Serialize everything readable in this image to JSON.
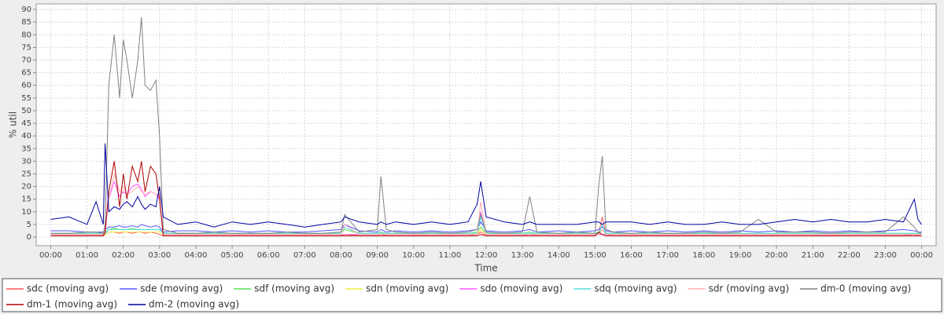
{
  "chart_data": {
    "type": "line",
    "ylabel": "% util",
    "xlabel": "Time",
    "xlim": [
      -0.4,
      24.4
    ],
    "ylim": [
      -3.4,
      92.2
    ],
    "xticks": [
      {
        "value": 0,
        "label": "00:00"
      },
      {
        "value": 1,
        "label": "01:00"
      },
      {
        "value": 2,
        "label": "02:00"
      },
      {
        "value": 3,
        "label": "03:00"
      },
      {
        "value": 4,
        "label": "04:00"
      },
      {
        "value": 5,
        "label": "05:00"
      },
      {
        "value": 6,
        "label": "06:00"
      },
      {
        "value": 7,
        "label": "07:00"
      },
      {
        "value": 8,
        "label": "08:00"
      },
      {
        "value": 9,
        "label": "09:00"
      },
      {
        "value": 10,
        "label": "10:00"
      },
      {
        "value": 11,
        "label": "11:00"
      },
      {
        "value": 12,
        "label": "12:00"
      },
      {
        "value": 13,
        "label": "13:00"
      },
      {
        "value": 14,
        "label": "14:00"
      },
      {
        "value": 15,
        "label": "15:00"
      },
      {
        "value": 16,
        "label": "16:00"
      },
      {
        "value": 17,
        "label": "17:00"
      },
      {
        "value": 18,
        "label": "18:00"
      },
      {
        "value": 19,
        "label": "19:00"
      },
      {
        "value": 20,
        "label": "20:00"
      },
      {
        "value": 21,
        "label": "21:00"
      },
      {
        "value": 22,
        "label": "22:00"
      },
      {
        "value": 23,
        "label": "23:00"
      },
      {
        "value": 24,
        "label": "00:00"
      }
    ],
    "yticks": [
      0,
      5,
      10,
      15,
      20,
      25,
      30,
      35,
      40,
      45,
      50,
      55,
      60,
      65,
      70,
      75,
      80,
      85,
      90
    ],
    "grid": true,
    "x": [
      0,
      0.5,
      1,
      1.25,
      1.45,
      1.5,
      1.6,
      1.75,
      1.9,
      2,
      2.1,
      2.25,
      2.4,
      2.5,
      2.6,
      2.75,
      2.9,
      3,
      3.1,
      3.5,
      4,
      4.5,
      5,
      5.5,
      6,
      6.5,
      7,
      7.5,
      8,
      8.1,
      8.5,
      9,
      9.1,
      9.25,
      9.5,
      10,
      10.5,
      11,
      11.5,
      11.75,
      11.85,
      12,
      12.5,
      13,
      13.2,
      13.4,
      14,
      14.5,
      15,
      15.1,
      15.2,
      15.3,
      15.5,
      16,
      16.5,
      17,
      17.5,
      18,
      18.5,
      19,
      19.5,
      20,
      20.5,
      21,
      21.5,
      22,
      22.5,
      23,
      23.5,
      23.8,
      23.9,
      24
    ],
    "series": [
      {
        "name": "sdc (moving avg)",
        "color": "#ff5555",
        "values": [
          0.5,
          0.5,
          0.5,
          0.5,
          0.5,
          1,
          2,
          2,
          1.5,
          2,
          2,
          1.5,
          2,
          2,
          1.5,
          2,
          1.5,
          1,
          0.5,
          0.5,
          0.5,
          0.5,
          0.5,
          0.5,
          0.5,
          0.5,
          0.5,
          0.5,
          0.5,
          1,
          0.5,
          0.5,
          1,
          0.5,
          0.5,
          0.5,
          0.5,
          0.5,
          0.5,
          1,
          2,
          0.5,
          0.5,
          0.5,
          1,
          0.5,
          0.5,
          0.5,
          0.5,
          1.5,
          8,
          1,
          0.5,
          0.5,
          0.5,
          0.5,
          0.5,
          0.5,
          0.5,
          0.5,
          0.5,
          0.5,
          0.5,
          0.5,
          0.5,
          0.5,
          0.5,
          0.5,
          0.5,
          1,
          0.5,
          0.5
        ]
      },
      {
        "name": "sde (moving avg)",
        "color": "#5555ff",
        "values": [
          2.5,
          2.5,
          2,
          2,
          2,
          3,
          4,
          4,
          4.5,
          4,
          4,
          4.5,
          4,
          5,
          4.5,
          4,
          4.5,
          4,
          2,
          2.5,
          2.5,
          2,
          2.5,
          2,
          2.5,
          2,
          2,
          2.5,
          3,
          5,
          2.5,
          2,
          3,
          2,
          2.5,
          2,
          2.5,
          2,
          2.5,
          3,
          6,
          2.5,
          2,
          2.5,
          3,
          2,
          2.5,
          2,
          2.5,
          3,
          4,
          2.5,
          2,
          2.5,
          2,
          2.5,
          2,
          2.5,
          2,
          2.5,
          2,
          2.5,
          2,
          2.5,
          2,
          2.5,
          2,
          2.5,
          3,
          2.5,
          2,
          2
        ]
      },
      {
        "name": "sdf (moving avg)",
        "color": "#55dd55",
        "values": [
          1.5,
          1.5,
          1.5,
          1.5,
          1.5,
          2,
          3,
          3.5,
          3,
          3,
          3,
          3.5,
          3,
          3,
          3,
          3,
          3,
          3,
          1.5,
          1.5,
          1.5,
          1.5,
          1.5,
          1.5,
          1.5,
          1.5,
          1.5,
          1.5,
          1.5,
          3,
          1.5,
          1.5,
          2,
          1.5,
          1.5,
          1.5,
          1.5,
          1.5,
          1.5,
          2,
          4,
          1.5,
          1.5,
          1.5,
          2,
          1.5,
          1.5,
          1.5,
          1.5,
          2,
          3,
          1.5,
          1.5,
          1.5,
          1.5,
          1.5,
          1.5,
          1.5,
          1.5,
          1.5,
          1.5,
          1.5,
          1.5,
          1.5,
          1.5,
          1.5,
          1.5,
          1.5,
          1.5,
          1.5,
          1.5,
          1.5
        ]
      },
      {
        "name": "sdn (moving avg)",
        "color": "#eeee44",
        "values": [
          1,
          1,
          1,
          1,
          1,
          1,
          2,
          2,
          2,
          2,
          2,
          2,
          2,
          2,
          2,
          2,
          2,
          2,
          1,
          1,
          1,
          1,
          1,
          1,
          1,
          1,
          1,
          1,
          1,
          1,
          1,
          1,
          1,
          1,
          1,
          1,
          1,
          1,
          1,
          1,
          3,
          1,
          1,
          1,
          1,
          1,
          1,
          1,
          1,
          1,
          1,
          1,
          1,
          1,
          1,
          1,
          1,
          1,
          1,
          1,
          1,
          1,
          1,
          1,
          1,
          1,
          1,
          1,
          1,
          1,
          1,
          1
        ]
      },
      {
        "name": "sdo (moving avg)",
        "color": "#ff55ff",
        "values": [
          1,
          1,
          1,
          1,
          1,
          2,
          15,
          22,
          16,
          18,
          17,
          20,
          21,
          19,
          16,
          18,
          17,
          15,
          1,
          1,
          1,
          1,
          1,
          1,
          1,
          1,
          1,
          1,
          1,
          1,
          1,
          1,
          1,
          1,
          1,
          1,
          1,
          1,
          1,
          1,
          10,
          1,
          1,
          1,
          1,
          1,
          1,
          1,
          1,
          1,
          1,
          1,
          1,
          1,
          1,
          1,
          1,
          1,
          1,
          1,
          1,
          1,
          1,
          1,
          1,
          1,
          1,
          1,
          1,
          1,
          1,
          1
        ]
      },
      {
        "name": "sdq (moving avg)",
        "color": "#55dddd",
        "values": [
          1.5,
          1.5,
          1.5,
          1.5,
          1.5,
          1.5,
          3,
          3,
          3,
          3,
          3,
          3,
          3,
          3,
          3,
          3,
          3,
          3,
          1.5,
          1.5,
          1.5,
          1.5,
          1.5,
          1.5,
          1.5,
          1.5,
          1.5,
          1.5,
          1.5,
          4,
          1.5,
          1.5,
          1.5,
          1.5,
          1.5,
          1.5,
          1.5,
          1.5,
          1.5,
          1.5,
          8,
          1.5,
          1.5,
          1.5,
          1.5,
          1.5,
          1.5,
          1.5,
          1.5,
          1.5,
          5,
          1.5,
          1.5,
          1.5,
          1.5,
          1.5,
          1.5,
          1.5,
          1.5,
          1.5,
          1.5,
          1.5,
          1.5,
          1.5,
          1.5,
          1.5,
          1.5,
          1.5,
          1.5,
          1.5,
          1.5,
          1.5
        ]
      },
      {
        "name": "sdr (moving avg)",
        "color": "#ffafaf",
        "values": [
          1,
          1,
          1,
          1,
          1,
          3,
          15,
          25,
          18,
          20,
          17,
          18,
          20,
          18,
          17,
          18,
          17,
          16,
          1,
          1,
          1,
          1,
          1,
          1,
          1,
          1,
          1,
          1,
          1,
          5,
          1,
          1,
          1,
          1,
          1,
          1,
          1,
          1,
          1,
          1,
          14,
          1,
          1,
          1,
          1,
          1,
          1,
          1,
          1,
          1,
          3,
          1,
          1,
          1,
          1,
          1,
          1,
          1,
          1,
          1,
          1,
          1,
          1,
          1,
          1,
          1,
          1,
          1,
          1,
          1,
          1,
          1
        ]
      },
      {
        "name": "dm-0 (moving avg)",
        "color": "#808080",
        "values": [
          1.5,
          1.5,
          2,
          2,
          1.5,
          5,
          60,
          80,
          55,
          78,
          70,
          55,
          70,
          87,
          60,
          58,
          62,
          40,
          3,
          1.5,
          1.5,
          2,
          1.5,
          1.5,
          1.5,
          2,
          1.5,
          1.5,
          2,
          9,
          2,
          3,
          24,
          3,
          2,
          1.5,
          2,
          1.5,
          2,
          3,
          9,
          2,
          1.5,
          2,
          16,
          2,
          1.5,
          2,
          1.5,
          20,
          32,
          3,
          2,
          1.5,
          2,
          1.5,
          1.5,
          2,
          1.5,
          2,
          7,
          2,
          2,
          2,
          1.5,
          2,
          2,
          2,
          8,
          4,
          2,
          1.5
        ]
      },
      {
        "name": "dm-1 (moving avg)",
        "color": "#b00000",
        "values": [
          0.5,
          0.5,
          0.5,
          0.5,
          0.5,
          2,
          18,
          30,
          12,
          25,
          15,
          28,
          22,
          30,
          18,
          28,
          25,
          15,
          0.5,
          0.5,
          0.5,
          0.5,
          0.5,
          0.5,
          0.5,
          0.5,
          0.5,
          0.5,
          0.5,
          0.5,
          0.5,
          0.5,
          0.5,
          0.5,
          0.5,
          0.5,
          0.5,
          0.5,
          0.5,
          0.5,
          1,
          0.5,
          0.5,
          0.5,
          0.5,
          0.5,
          0.5,
          0.5,
          0.5,
          2,
          1,
          0.5,
          0.5,
          0.5,
          0.5,
          0.5,
          0.5,
          0.5,
          0.5,
          0.5,
          0.5,
          0.5,
          0.5,
          0.5,
          0.5,
          0.5,
          0.5,
          0.5,
          0.5,
          0.5,
          0.5,
          0.5
        ]
      },
      {
        "name": "dm-2 (moving avg)",
        "color": "#0000a0",
        "values": [
          7,
          8,
          5,
          14,
          5,
          37,
          10,
          12,
          11,
          13,
          14,
          12,
          16,
          13,
          11,
          13,
          12,
          20,
          8,
          5,
          6,
          4,
          6,
          5,
          6,
          5,
          4,
          5,
          6,
          8,
          6,
          5,
          6,
          5,
          6,
          5,
          6,
          5,
          6,
          13,
          22,
          8,
          6,
          5,
          6,
          5,
          5,
          5,
          6,
          6,
          5,
          6,
          6,
          6,
          5,
          6,
          5,
          5,
          6,
          5,
          5,
          6,
          7,
          6,
          7,
          6,
          6,
          7,
          6,
          15,
          7,
          5
        ]
      }
    ]
  }
}
